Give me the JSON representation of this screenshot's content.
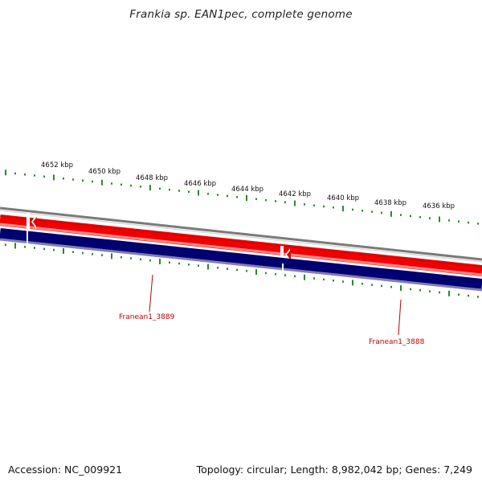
{
  "header": {
    "title": "Frankia sp. EAN1pec, complete genome"
  },
  "footer": {
    "accession": "Accession: NC_009921",
    "topology": "Topology: circular; Length: 8,982,042 bp; Genes: 7,249"
  },
  "colors": {
    "forward_strand": "#f00000",
    "forward_strand_light": "#ff8080",
    "reverse_strand": "#000070",
    "reverse_strand_light": "#8080b0",
    "backbone": "#7a7a7a",
    "ticks": "#2a8a2a",
    "gene_label": "#c00000"
  },
  "kbp_labels": [
    "4652 kbp",
    "4650 kbp",
    "4648 kbp",
    "4646 kbp",
    "4644 kbp",
    "4642 kbp",
    "4640 kbp",
    "4638 kbp",
    "4636 kbp"
  ],
  "genes": [
    {
      "label": "Franean1_3889"
    },
    {
      "label": "Franean1_3888"
    }
  ]
}
